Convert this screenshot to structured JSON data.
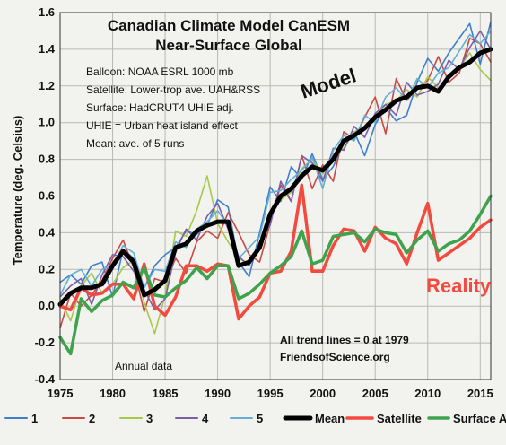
{
  "chart_data": {
    "type": "line",
    "title_line1": "Canadian Climate Model CanESM",
    "title_line2": "Near-Surface Global",
    "ylabel": "Temperature (deg. Celsius)",
    "xlim": [
      1975,
      2016
    ],
    "ylim": [
      -0.4,
      1.6
    ],
    "xticks": [
      "1975",
      "1980",
      "1985",
      "1990",
      "1995",
      "2000",
      "2005",
      "2010",
      "2015"
    ],
    "yticks": [
      "-0.4",
      "-0.2",
      "0.0",
      "0.2",
      "0.4",
      "0.6",
      "0.8",
      "1.0",
      "1.2",
      "1.4",
      "1.6"
    ],
    "grid": true,
    "notes": [
      "Balloon: NOAA ESRL 1000 mb",
      "Satellite: Lower-trop ave. UAH&RSS",
      "Surface: HadCRUT4 UHIE adj.",
      "UHIE = Urban heat island effect",
      "Mean: ave. of 5 runs"
    ],
    "annotation_model": "Model",
    "annotation_reality": "Reality",
    "annotation_trend": "All trend lines = 0 at 1979",
    "annotation_source": "FriendsofScience.org",
    "annotation_annual": "Annual data",
    "legend_position": "bottom",
    "x": [
      1975,
      1976,
      1977,
      1978,
      1979,
      1980,
      1981,
      1982,
      1983,
      1984,
      1985,
      1986,
      1987,
      1988,
      1989,
      1990,
      1991,
      1992,
      1993,
      1994,
      1995,
      1996,
      1997,
      1998,
      1999,
      2000,
      2001,
      2002,
      2003,
      2004,
      2005,
      2006,
      2007,
      2008,
      2009,
      2010,
      2011,
      2012,
      2013,
      2014,
      2015,
      2016
    ],
    "series": [
      {
        "name": "1",
        "color": "#3d7fc9",
        "values": [
          0.13,
          0.17,
          0.12,
          0.22,
          0.24,
          0.05,
          0.31,
          0.26,
          0.1,
          0.22,
          0.28,
          0.32,
          0.41,
          0.39,
          0.44,
          0.58,
          0.54,
          0.24,
          0.16,
          0.4,
          0.65,
          0.57,
          0.76,
          0.69,
          0.83,
          0.69,
          0.76,
          0.89,
          0.95,
          0.82,
          0.99,
          1.08,
          1.01,
          1.04,
          1.22,
          1.35,
          1.28,
          1.38,
          1.46,
          1.54,
          1.32,
          1.55
        ]
      },
      {
        "name": "2",
        "color": "#c94a44",
        "values": [
          -0.12,
          0.07,
          0.0,
          0.06,
          0.14,
          0.26,
          0.36,
          0.21,
          -0.03,
          0.15,
          0.13,
          0.26,
          0.18,
          0.35,
          0.41,
          0.37,
          0.51,
          0.4,
          0.28,
          0.24,
          0.45,
          0.66,
          0.57,
          0.82,
          0.64,
          0.77,
          0.68,
          0.95,
          0.91,
          1.03,
          1.14,
          0.94,
          1.24,
          1.12,
          1.19,
          1.23,
          1.36,
          1.22,
          1.27,
          1.46,
          1.43,
          1.33
        ]
      },
      {
        "name": "3",
        "color": "#a8c84a",
        "values": [
          0.04,
          -0.08,
          0.11,
          0.18,
          0.07,
          0.12,
          0.21,
          0.25,
          0.02,
          -0.15,
          0.06,
          0.41,
          0.38,
          0.52,
          0.71,
          0.45,
          0.35,
          0.26,
          0.23,
          0.32,
          0.5,
          0.58,
          0.62,
          0.75,
          0.8,
          0.72,
          0.83,
          0.86,
          0.95,
          0.98,
          1.02,
          1.1,
          1.12,
          1.18,
          1.14,
          1.25,
          1.19,
          1.24,
          1.3,
          1.38,
          1.29,
          1.23
        ]
      },
      {
        "name": "4",
        "color": "#7a5fa8",
        "values": [
          0.05,
          0.11,
          0.15,
          0.01,
          0.17,
          0.28,
          0.27,
          0.19,
          0.09,
          -0.02,
          0.04,
          0.3,
          0.42,
          0.36,
          0.49,
          0.56,
          0.42,
          0.27,
          0.22,
          0.35,
          0.44,
          0.68,
          0.57,
          0.82,
          0.78,
          0.68,
          0.86,
          0.85,
          0.98,
          0.92,
          1.05,
          1.1,
          1.04,
          1.22,
          1.15,
          1.17,
          1.21,
          1.34,
          1.29,
          1.41,
          1.5,
          1.4
        ]
      },
      {
        "name": "5",
        "color": "#62b0d6",
        "values": [
          0.06,
          0.17,
          0.2,
          0.11,
          0.2,
          0.22,
          0.33,
          0.29,
          0.1,
          0.2,
          0.19,
          0.35,
          0.32,
          0.42,
          0.46,
          0.52,
          0.44,
          0.26,
          0.32,
          0.38,
          0.62,
          0.63,
          0.69,
          0.74,
          0.81,
          0.64,
          0.85,
          0.93,
          0.9,
          1.04,
          1.0,
          1.14,
          1.19,
          1.12,
          1.24,
          1.19,
          1.27,
          1.3,
          1.39,
          1.48,
          1.43,
          1.5
        ]
      },
      {
        "name": "Mean",
        "color": "#000000",
        "values": [
          0.01,
          0.07,
          0.1,
          0.1,
          0.12,
          0.22,
          0.3,
          0.24,
          0.06,
          0.09,
          0.14,
          0.32,
          0.34,
          0.41,
          0.44,
          0.46,
          0.46,
          0.22,
          0.24,
          0.32,
          0.5,
          0.6,
          0.64,
          0.71,
          0.76,
          0.74,
          0.8,
          0.9,
          0.93,
          0.97,
          1.03,
          1.07,
          1.12,
          1.14,
          1.19,
          1.2,
          1.17,
          1.25,
          1.3,
          1.33,
          1.38,
          1.4
        ]
      },
      {
        "name": "Satellite",
        "color": "#f24a3e",
        "values": [
          0.0,
          -0.02,
          0.1,
          0.06,
          0.07,
          0.12,
          0.12,
          0.04,
          0.23,
          0.0,
          -0.05,
          0.05,
          0.22,
          0.22,
          0.19,
          0.23,
          0.22,
          -0.07,
          0.0,
          0.05,
          0.18,
          0.19,
          0.3,
          0.66,
          0.19,
          0.19,
          0.33,
          0.42,
          0.41,
          0.3,
          0.43,
          0.37,
          0.34,
          0.23,
          0.4,
          0.56,
          0.25,
          0.29,
          0.33,
          0.37,
          0.43,
          0.47
        ]
      },
      {
        "name": "Surface Adj.",
        "color": "#3fa34d",
        "values": [
          -0.17,
          -0.26,
          0.04,
          -0.03,
          0.03,
          0.06,
          0.13,
          0.1,
          0.21,
          0.06,
          0.05,
          0.1,
          0.14,
          0.21,
          0.15,
          0.22,
          0.22,
          0.04,
          0.07,
          0.12,
          0.18,
          0.22,
          0.27,
          0.41,
          0.23,
          0.25,
          0.38,
          0.39,
          0.4,
          0.35,
          0.42,
          0.4,
          0.39,
          0.29,
          0.36,
          0.41,
          0.3,
          0.34,
          0.36,
          0.41,
          0.5,
          0.6
        ]
      }
    ]
  }
}
